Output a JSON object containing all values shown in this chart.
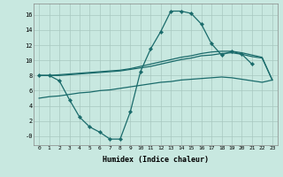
{
  "bg_color": "#c8e8e0",
  "grid_color": "#a8c8c0",
  "line_color": "#1a6b6b",
  "xlabel": "Humidex (Indice chaleur)",
  "xlim": [
    -0.5,
    23.5
  ],
  "ylim": [
    -1.2,
    17.5
  ],
  "yticks": [
    0,
    2,
    4,
    6,
    8,
    10,
    12,
    14,
    16
  ],
  "ytick_labels": [
    "-0",
    "2",
    "4",
    "6",
    "8",
    "10",
    "12",
    "14",
    "16"
  ],
  "xticks": [
    0,
    1,
    2,
    3,
    4,
    5,
    6,
    7,
    8,
    9,
    10,
    11,
    12,
    13,
    14,
    15,
    16,
    17,
    18,
    19,
    20,
    21,
    22,
    23
  ],
  "curve1_x": [
    0,
    1,
    2,
    3,
    4,
    5,
    6,
    7,
    8,
    9,
    10,
    11,
    12,
    13,
    14,
    15,
    16,
    17,
    18,
    19,
    20,
    21
  ],
  "curve1_y": [
    8.0,
    8.0,
    7.3,
    4.8,
    2.5,
    1.2,
    0.5,
    -0.4,
    -0.4,
    3.2,
    8.5,
    11.5,
    13.8,
    16.5,
    16.5,
    16.2,
    14.8,
    12.2,
    10.7,
    11.2,
    10.8,
    9.5
  ],
  "line_upper1_x": [
    0,
    1,
    2,
    3,
    4,
    5,
    6,
    7,
    8,
    9,
    10,
    11,
    12,
    13,
    14,
    15,
    16,
    17,
    18,
    19,
    20,
    21,
    22,
    23
  ],
  "line_upper1_y": [
    8.0,
    8.0,
    8.0,
    8.1,
    8.2,
    8.3,
    8.4,
    8.5,
    8.6,
    8.8,
    9.0,
    9.2,
    9.5,
    9.8,
    10.1,
    10.3,
    10.6,
    10.7,
    10.9,
    11.0,
    10.8,
    10.5,
    10.3,
    7.4
  ],
  "line_upper2_x": [
    0,
    1,
    2,
    3,
    4,
    5,
    6,
    7,
    8,
    9,
    10,
    11,
    12,
    13,
    14,
    15,
    16,
    17,
    18,
    19,
    20,
    21,
    22,
    23
  ],
  "line_upper2_y": [
    8.0,
    8.0,
    8.1,
    8.2,
    8.3,
    8.4,
    8.5,
    8.6,
    8.7,
    8.9,
    9.2,
    9.5,
    9.8,
    10.1,
    10.4,
    10.6,
    10.9,
    11.1,
    11.2,
    11.2,
    11.0,
    10.7,
    10.4,
    7.4
  ],
  "line_lower_x": [
    0,
    1,
    2,
    3,
    4,
    5,
    6,
    7,
    8,
    9,
    10,
    11,
    12,
    13,
    14,
    15,
    16,
    17,
    18,
    19,
    20,
    21,
    22,
    23
  ],
  "line_lower_y": [
    5.0,
    5.2,
    5.3,
    5.5,
    5.7,
    5.8,
    6.0,
    6.1,
    6.3,
    6.5,
    6.7,
    6.9,
    7.1,
    7.2,
    7.4,
    7.5,
    7.6,
    7.7,
    7.8,
    7.7,
    7.5,
    7.3,
    7.1,
    7.4
  ]
}
